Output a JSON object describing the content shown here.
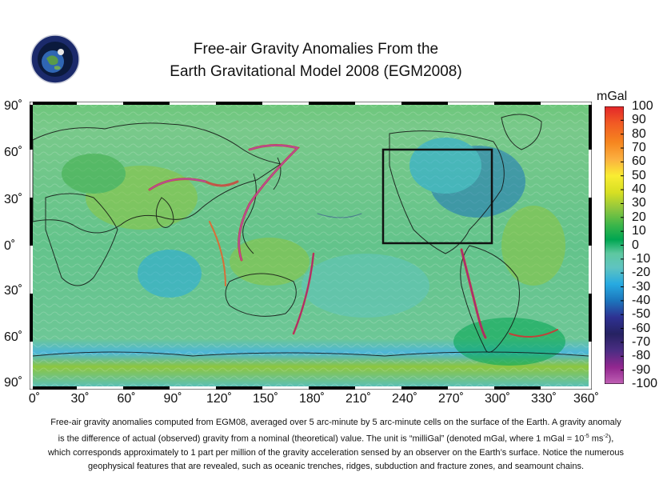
{
  "title_line1": "Free-air Gravity Anomalies From the",
  "title_line2": "Earth Gravitational Model 2008 (EGM2008)",
  "colorbar": {
    "unit": "mGal",
    "ticks": [
      "100",
      "90",
      "80",
      "70",
      "60",
      "50",
      "40",
      "30",
      "20",
      "10",
      "0",
      "-10",
      "-20",
      "-30",
      "-40",
      "-50",
      "-60",
      "-70",
      "-80",
      "-90",
      "-100"
    ],
    "colors": [
      "#e3262a",
      "#f15a24",
      "#f6861f",
      "#fbb040",
      "#f9ed32",
      "#d7df23",
      "#8dc63f",
      "#39b54a",
      "#00a651",
      "#3fae49",
      "#5ec8a0",
      "#5fc4c0",
      "#27aae1",
      "#1c75bc",
      "#2e3192",
      "#262262",
      "#4b2d83",
      "#6f3b8f",
      "#92278f",
      "#b04aa8"
    ]
  },
  "lat_labels": [
    "90˚",
    "60˚",
    "30˚",
    "0˚",
    "30˚",
    "60˚",
    "90˚"
  ],
  "lon_labels": [
    "0˚",
    "30˚",
    "60˚",
    "90˚",
    "120˚",
    "150˚",
    "180˚",
    "210˚",
    "240˚",
    "270˚",
    "300˚",
    "330˚",
    "360˚"
  ],
  "caption": {
    "line1": "Free-air gravity anomalies computed from EGM08, averaged over 5 arc-minute by 5 arc-minute cells on the surface of the Earth. A gravity anomaly",
    "line2a": "is the difference of actual (observed) gravity from a nominal (theoretical) value. The unit is “milliGal” (denoted mGal, where 1 mGal = 10",
    "line2_exp1": "-5",
    "line2b": " ms",
    "line2_exp2": "-2",
    "line2c": "),",
    "line3": "which corresponds approximately to 1 part per million of the gravity acceleration sensed by an observer on the Earth’s surface. Notice the numerous",
    "line4": "geophysical features that are revealed, such as oceanic trenches, ridges, subduction and fracture zones, and seamount chains."
  },
  "logo_icon": "earth-globe-seal-icon",
  "map_layer": "global-gravity-anomaly-raster",
  "highlight_region": {
    "lon_min": 228,
    "lon_max": 298,
    "lat_min": 2,
    "lat_max": 62
  }
}
